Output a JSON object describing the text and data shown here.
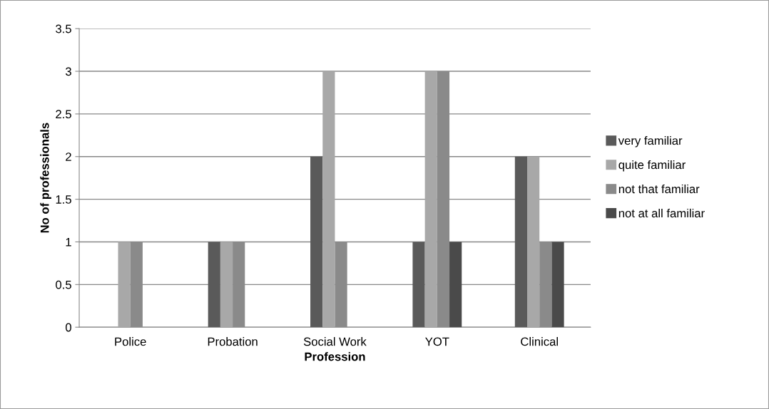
{
  "chart_data": {
    "type": "bar",
    "xlabel": "Profession",
    "ylabel": "No of professionals",
    "categories": [
      "Police",
      "Probation",
      "Social Work",
      "YOT",
      "Clinical"
    ],
    "series": [
      {
        "name": "very familiar",
        "color": "#5a5a5a",
        "values": [
          0,
          1,
          2,
          1,
          2
        ]
      },
      {
        "name": "quite familiar",
        "color": "#a8a8a8",
        "values": [
          1,
          1,
          3,
          3,
          2
        ]
      },
      {
        "name": "not that familiar",
        "color": "#8a8a8a",
        "values": [
          1,
          1,
          1,
          3,
          1
        ]
      },
      {
        "name": "not at all familiar",
        "color": "#4a4a4a",
        "values": [
          0,
          0,
          0,
          1,
          1
        ]
      }
    ],
    "ylim": [
      0,
      3.5
    ],
    "yticks": [
      0,
      0.5,
      1,
      1.5,
      2,
      2.5,
      3,
      3.5
    ],
    "grid": "y",
    "legend": "right"
  }
}
